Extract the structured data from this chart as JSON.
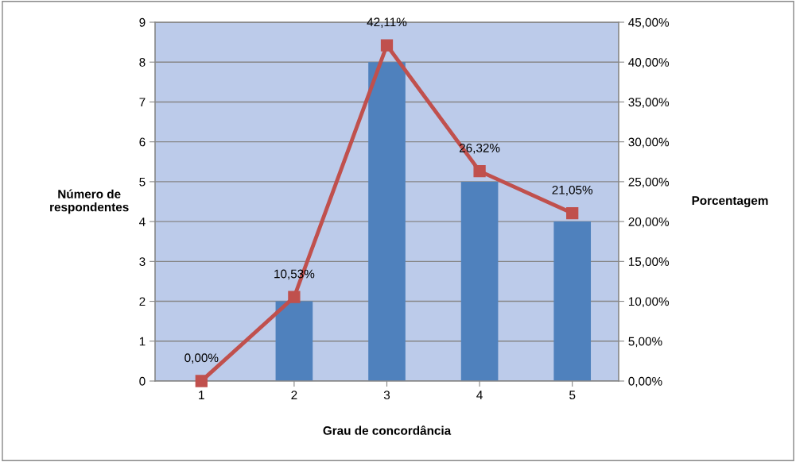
{
  "chart_data": {
    "type": "bar",
    "xlabel": "Grau de concordância",
    "ylabel": "Número de\nrespondentes",
    "y2label": "Porcentagem",
    "categories": [
      "1",
      "2",
      "3",
      "4",
      "5"
    ],
    "series": [
      {
        "color": "#4f81bd",
        "values": [
          0,
          2,
          8,
          5,
          4
        ]
      },
      {
        "type": "line",
        "axis": "y2",
        "color": "#c0504d",
        "marker": "square",
        "values": [
          0.0,
          10.53,
          42.11,
          26.32,
          21.05
        ],
        "value_labels": [
          "0,00%",
          "10,53%",
          "42,11%",
          "26,32%",
          "21,05%"
        ]
      }
    ],
    "ylim": [
      0,
      9
    ],
    "yticks": [
      0,
      1,
      2,
      3,
      4,
      5,
      6,
      7,
      8,
      9
    ],
    "y2lim": [
      0,
      45
    ],
    "y2ticks": [
      {
        "value": 0,
        "label": "0,00%"
      },
      {
        "value": 5,
        "label": "5,00%"
      },
      {
        "value": 10,
        "label": "10,00%"
      },
      {
        "value": 15,
        "label": "15,00%"
      },
      {
        "value": 20,
        "label": "20,00%"
      },
      {
        "value": 25,
        "label": "25,00%"
      },
      {
        "value": 30,
        "label": "30,00%"
      },
      {
        "value": 35,
        "label": "35,00%"
      },
      {
        "value": 40,
        "label": "40,00%"
      },
      {
        "value": 45,
        "label": "45,00%"
      }
    ],
    "grid": "y"
  }
}
